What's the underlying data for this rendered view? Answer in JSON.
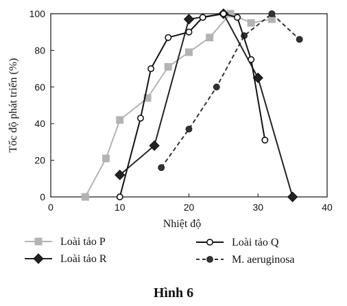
{
  "caption": "Hình 6",
  "chart_data": {
    "type": "line",
    "xlabel": "Nhiệt độ",
    "ylabel": "Tốc độ phát triển (%)",
    "xlim": [
      0,
      40
    ],
    "ylim": [
      0,
      100
    ],
    "xticks": [
      0,
      10,
      20,
      30,
      40
    ],
    "yticks": [
      0,
      20,
      40,
      60,
      80,
      100
    ],
    "grid": false,
    "legend_position": "bottom",
    "series": [
      {
        "name": "Loài tảo P",
        "color": "#b3b3b3",
        "marker": "square",
        "dash": "solid",
        "x": [
          5,
          8,
          10,
          14,
          17,
          20,
          23,
          26,
          29,
          32
        ],
        "y": [
          0,
          21,
          42,
          54,
          71,
          79,
          87,
          100,
          95,
          97
        ]
      },
      {
        "name": "Loài tảo Q",
        "color": "#111111",
        "marker": "circle-open",
        "dash": "solid",
        "x": [
          10,
          13,
          14.5,
          17,
          20,
          22,
          25,
          27,
          29,
          31
        ],
        "y": [
          0,
          43,
          70,
          87,
          90,
          98,
          100,
          98,
          75,
          31
        ]
      },
      {
        "name": "Loài tảo R",
        "color": "#222222",
        "marker": "diamond",
        "dash": "solid",
        "x": [
          10,
          15,
          20,
          25,
          30,
          35
        ],
        "y": [
          12,
          28,
          97,
          100,
          65,
          0
        ]
      },
      {
        "name": "M. aeruginosa",
        "color": "#333333",
        "marker": "circle-filled",
        "dash": "dashed",
        "x": [
          16,
          20,
          24,
          28,
          32,
          36
        ],
        "y": [
          16,
          37,
          60,
          88,
          100,
          86
        ]
      }
    ]
  }
}
